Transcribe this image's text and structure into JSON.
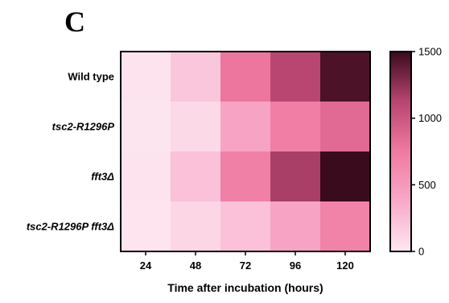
{
  "panel_label": "C",
  "chart_data": {
    "type": "heatmap",
    "title": "",
    "xlabel": "Time after incubation (hours)",
    "ylabel": "",
    "x_categories": [
      "24",
      "48",
      "72",
      "96",
      "120"
    ],
    "y_categories": [
      "Wild type",
      "tsc2-R1296P",
      "fft3Δ",
      "tsc2-R1296P fft3Δ"
    ],
    "y_italic": [
      false,
      true,
      true,
      true
    ],
    "values": [
      [
        30,
        200,
        780,
        1120,
        1450
      ],
      [
        20,
        90,
        420,
        720,
        860
      ],
      [
        30,
        230,
        700,
        1170,
        1560
      ],
      [
        25,
        110,
        230,
        420,
        680
      ]
    ],
    "colorbar": {
      "min": 0,
      "max": 1500,
      "ticks": [
        0,
        500,
        1000,
        1500
      ],
      "colors": [
        "#fde8f1",
        "#f8a9c8",
        "#f07aa1",
        "#b84570",
        "#3a0a1d"
      ]
    }
  }
}
